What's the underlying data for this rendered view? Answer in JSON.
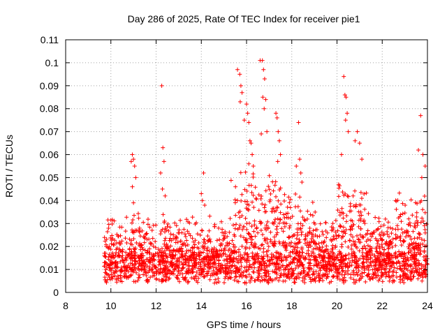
{
  "chart_data": {
    "type": "scatter",
    "title": "Day 286 of 2025, Rate Of TEC Index for receiver pie1",
    "xlabel": "GPS time / hours",
    "ylabel": "ROTI / TECUs",
    "xlim": [
      8,
      24
    ],
    "ylim": [
      0,
      0.11
    ],
    "xticks": [
      8,
      10,
      12,
      14,
      16,
      18,
      20,
      22,
      24
    ],
    "yticks": [
      0,
      0.01,
      0.02,
      0.03,
      0.04,
      0.05,
      0.06,
      0.07,
      0.08,
      0.09,
      0.1,
      0.11
    ],
    "xtick_labels": [
      "8",
      "10",
      "12",
      "14",
      "16",
      "18",
      "20",
      "22",
      "24"
    ],
    "ytick_labels": [
      "0",
      "0.01",
      "0.02",
      "0.03",
      "0.04",
      "0.05",
      "0.06",
      "0.07",
      "0.08",
      "0.09",
      "0.1",
      "0.11"
    ],
    "grid": true,
    "marker": "plus",
    "color": "#ff0000",
    "series": [
      {
        "x": [
          10.9,
          10.95,
          11.0,
          11.05,
          11.1,
          10.95,
          11.0,
          12.25,
          12.3,
          12.35,
          12.2,
          12.28,
          12.4,
          14.0,
          14.05,
          14.1,
          14.15,
          15.6,
          15.7,
          15.75,
          15.8,
          15.72,
          15.9,
          16.0,
          16.05,
          16.1,
          16.15,
          16.2,
          16.25,
          16.1,
          16.3,
          16.6,
          16.7,
          16.75,
          16.8,
          16.72,
          16.85,
          16.78,
          16.9,
          16.65,
          17.3,
          17.35,
          17.4,
          17.45,
          17.5,
          17.38,
          18.2,
          18.3,
          18.35,
          18.4,
          18.45,
          20.2,
          20.3,
          20.35,
          20.4,
          20.45,
          20.38,
          20.5,
          20.8,
          20.9,
          21.0,
          21.1,
          23.6,
          23.7,
          23.8,
          23.9,
          23.75
        ],
        "y": [
          0.057,
          0.06,
          0.058,
          0.055,
          0.05,
          0.046,
          0.039,
          0.09,
          0.063,
          0.057,
          0.052,
          0.045,
          0.042,
          0.043,
          0.04,
          0.052,
          0.038,
          0.097,
          0.095,
          0.09,
          0.087,
          0.083,
          0.075,
          0.082,
          0.078,
          0.074,
          0.066,
          0.065,
          0.06,
          0.056,
          0.055,
          0.101,
          0.101,
          0.097,
          0.093,
          0.085,
          0.084,
          0.08,
          0.07,
          0.069,
          0.078,
          0.076,
          0.07,
          0.066,
          0.06,
          0.057,
          0.055,
          0.074,
          0.058,
          0.052,
          0.048,
          0.06,
          0.094,
          0.086,
          0.085,
          0.078,
          0.075,
          0.07,
          0.066,
          0.07,
          0.065,
          0.058,
          0.062,
          0.077,
          0.06,
          0.055,
          0.05
        ]
      }
    ]
  }
}
